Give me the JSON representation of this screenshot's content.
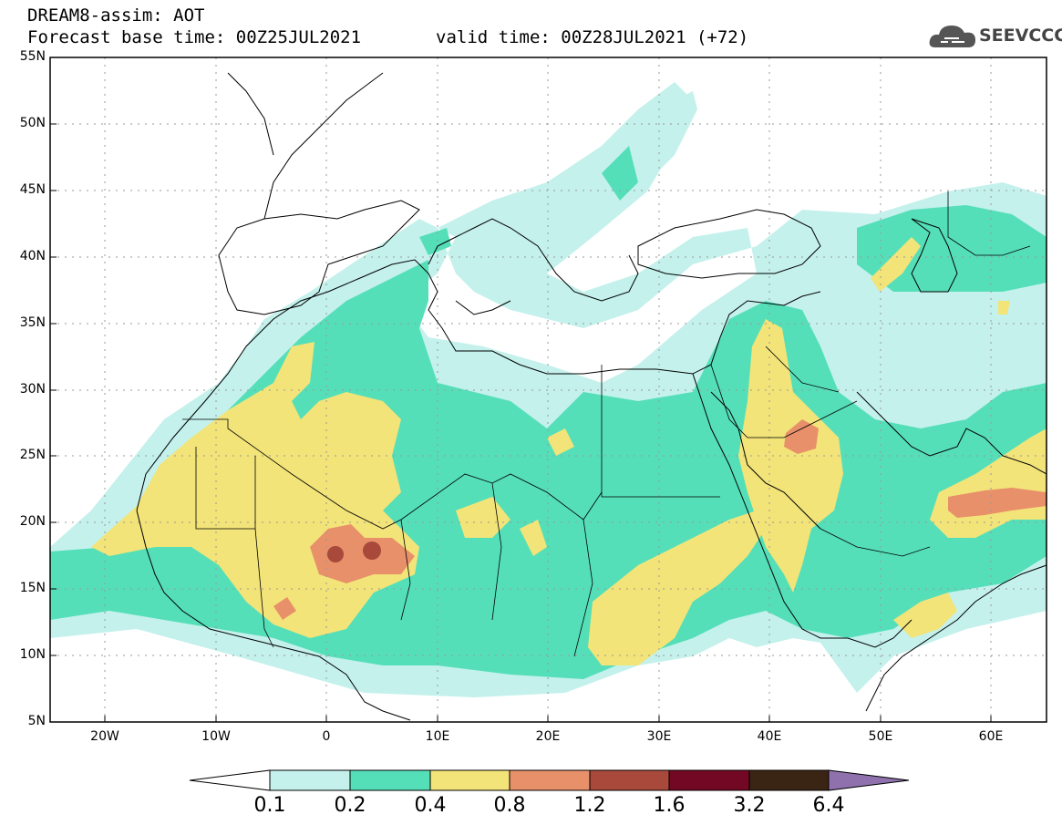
{
  "title": {
    "line1": "DREAM8-assim: AOT",
    "line2": "Forecast base time: 00Z25JUL2021",
    "valid": "valid time: 00Z28JUL2021 (+72)"
  },
  "logo": {
    "text": "SEEVCCC",
    "icon": "cloud-icon"
  },
  "map": {
    "lat_labels": [
      "55N",
      "50N",
      "45N",
      "40N",
      "35N",
      "30N",
      "25N",
      "20N",
      "15N",
      "10N",
      "5N"
    ],
    "lon_labels": [
      "20W",
      "10W",
      "0",
      "10E",
      "20E",
      "30E",
      "40E",
      "50E",
      "60E"
    ],
    "extent": {
      "lon_min": -25,
      "lon_max": 65,
      "lat_min": 5,
      "lat_max": 55
    }
  },
  "colorbar": {
    "labels": [
      "0.1",
      "0.2",
      "0.4",
      "0.8",
      "1.2",
      "1.6",
      "3.2",
      "6.4"
    ],
    "colors": [
      "#c4f1ec",
      "#55dfb8",
      "#f2e479",
      "#e8906a",
      "#a8493b",
      "#720823",
      "#3a2414",
      "#8f72ad"
    ]
  }
}
